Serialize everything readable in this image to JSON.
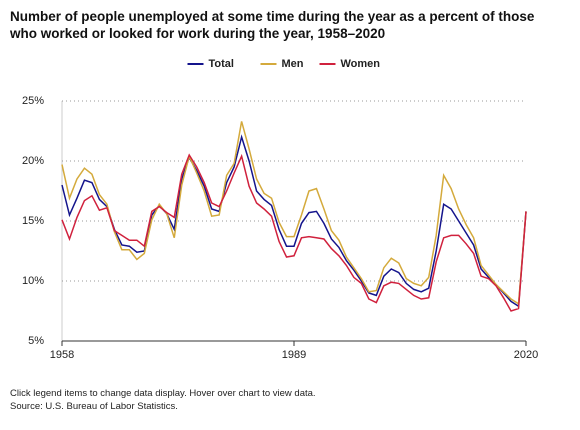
{
  "chart_data": {
    "type": "line",
    "title": "Number of people unemployed at some time during the year as a percent of those who worked or looked for work during the year, 1958–2020",
    "note": "Click legend items to change data display. Hover over chart to view data.",
    "source": "Source: U.S. Bureau of Labor Statistics.",
    "x": [
      1958,
      1959,
      1960,
      1961,
      1962,
      1963,
      1964,
      1965,
      1966,
      1967,
      1968,
      1969,
      1970,
      1971,
      1972,
      1973,
      1974,
      1975,
      1976,
      1977,
      1978,
      1979,
      1980,
      1981,
      1982,
      1983,
      1984,
      1985,
      1986,
      1987,
      1988,
      1989,
      1990,
      1991,
      1992,
      1993,
      1994,
      1995,
      1996,
      1997,
      1998,
      1999,
      2000,
      2001,
      2002,
      2003,
      2004,
      2005,
      2006,
      2007,
      2008,
      2009,
      2010,
      2011,
      2012,
      2013,
      2014,
      2015,
      2016,
      2017,
      2018,
      2019,
      2020
    ],
    "series": [
      {
        "name": "Total",
        "color": "#14148c",
        "values": [
          18.0,
          15.5,
          16.9,
          18.4,
          18.2,
          16.8,
          16.2,
          14.3,
          13.0,
          12.9,
          12.4,
          12.5,
          15.5,
          16.3,
          15.6,
          14.3,
          18.5,
          20.3,
          19.2,
          17.9,
          16.0,
          15.8,
          18.2,
          19.5,
          22.0,
          20.0,
          17.5,
          16.8,
          16.3,
          14.3,
          12.9,
          12.9,
          14.8,
          15.7,
          15.8,
          14.8,
          13.5,
          12.8,
          11.7,
          10.9,
          10.0,
          9.0,
          8.8,
          10.4,
          11.0,
          10.7,
          9.8,
          9.3,
          9.1,
          9.4,
          12.5,
          16.4,
          16.0,
          15.0,
          14.0,
          13.0,
          11.0,
          10.3,
          9.7,
          9.0,
          8.3,
          7.9,
          15.8
        ]
      },
      {
        "name": "Men",
        "color": "#d4aa3c",
        "values": [
          19.7,
          16.9,
          18.5,
          19.4,
          18.9,
          17.2,
          16.4,
          14.1,
          12.6,
          12.6,
          11.8,
          12.3,
          15.1,
          16.4,
          15.6,
          13.6,
          18.0,
          20.4,
          19.0,
          17.5,
          15.4,
          15.5,
          18.8,
          19.8,
          23.3,
          21.0,
          18.5,
          17.3,
          16.9,
          14.9,
          13.7,
          13.7,
          15.5,
          17.5,
          17.7,
          16.0,
          14.2,
          13.4,
          12.0,
          11.1,
          10.2,
          9.1,
          9.2,
          11.1,
          11.9,
          11.5,
          10.2,
          9.8,
          9.6,
          10.3,
          13.8,
          18.8,
          17.7,
          16.0,
          14.7,
          13.6,
          11.3,
          10.5,
          9.7,
          9.1,
          8.5,
          8.1,
          15.8
        ]
      },
      {
        "name": "Women",
        "color": "#d0213d",
        "values": [
          15.1,
          13.5,
          15.3,
          16.7,
          17.1,
          15.9,
          16.1,
          14.2,
          13.8,
          13.4,
          13.4,
          12.9,
          15.8,
          16.2,
          15.7,
          15.3,
          18.9,
          20.5,
          19.5,
          18.2,
          16.5,
          16.2,
          17.5,
          19.0,
          20.4,
          17.9,
          16.5,
          16.0,
          15.4,
          13.3,
          12.0,
          12.1,
          13.6,
          13.7,
          13.6,
          13.5,
          12.7,
          12.1,
          11.3,
          10.3,
          9.8,
          8.5,
          8.2,
          9.6,
          9.9,
          9.8,
          9.3,
          8.8,
          8.5,
          8.6,
          11.6,
          13.6,
          13.8,
          13.8,
          13.1,
          12.3,
          10.4,
          10.2,
          9.6,
          8.6,
          7.5,
          7.7,
          15.8
        ]
      }
    ],
    "xlim": [
      1958,
      2020
    ],
    "xticks": [
      1958,
      1989,
      2020
    ],
    "ylim": [
      5,
      25
    ],
    "yticks": [
      {
        "value": 5,
        "label": "5%"
      },
      {
        "value": 10,
        "label": "10%"
      },
      {
        "value": 15,
        "label": "15%"
      },
      {
        "value": 20,
        "label": "20%"
      },
      {
        "value": 25,
        "label": "25%"
      }
    ],
    "grid": true
  }
}
